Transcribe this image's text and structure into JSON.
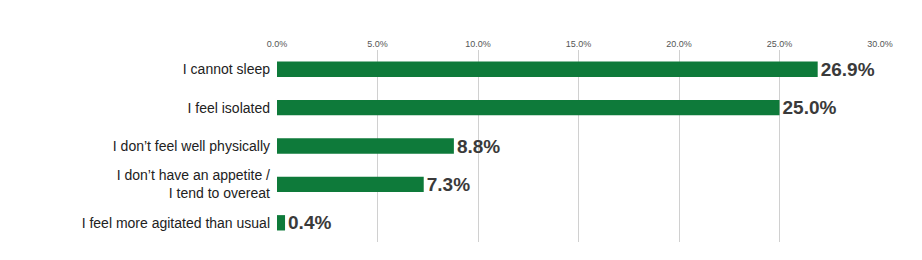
{
  "chart_data": {
    "type": "bar",
    "orientation": "horizontal",
    "categories": [
      "I cannot sleep",
      "I feel isolated",
      "I don’t feel well physically",
      "I don’t have an appetite /\nI tend to overeat",
      "I feel more agitated than usual"
    ],
    "values": [
      26.9,
      25.0,
      8.8,
      7.3,
      0.4
    ],
    "value_labels": [
      "26.9%",
      "25.0%",
      "8.8%",
      "7.3%",
      "0.4%"
    ],
    "data_labels": true,
    "color": "#0e7a3a",
    "xlim": [
      0,
      30
    ],
    "xticks": [
      {
        "value": 0,
        "label": "0.0%"
      },
      {
        "value": 5,
        "label": "5.0%"
      },
      {
        "value": 10,
        "label": "10.0%"
      },
      {
        "value": 15,
        "label": "15.0%"
      },
      {
        "value": 20,
        "label": "20.0%"
      },
      {
        "value": 25,
        "label": "25.0%"
      },
      {
        "value": 30,
        "label": "30.0%"
      }
    ],
    "grid": true
  }
}
